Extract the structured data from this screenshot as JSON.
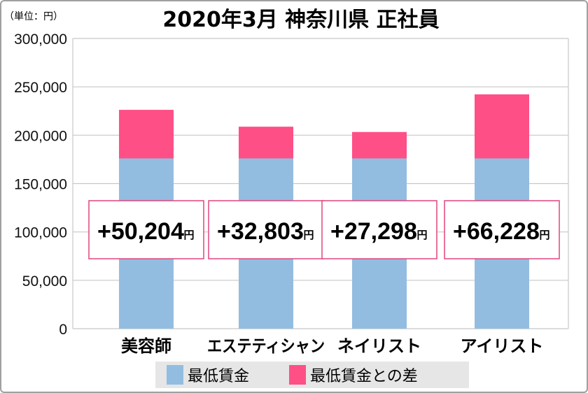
{
  "chart_data": {
    "type": "bar",
    "stacked": true,
    "title": "2020年3月 神奈川県 正社員",
    "unit_note": "（単位：円）",
    "categories": [
      "美容師",
      "エステティシャン",
      "ネイリスト",
      "アイリスト"
    ],
    "series": [
      {
        "name": "最低賃金",
        "color": "#93bde0",
        "values": [
          176000,
          176000,
          176000,
          176000
        ]
      },
      {
        "name": "最低賃金との差",
        "color": "#ff4f87",
        "values": [
          50204,
          32803,
          27298,
          66228
        ]
      }
    ],
    "data_labels": [
      "+50,204",
      "+32,803",
      "+27,298",
      "+66,228"
    ],
    "data_label_unit": "円",
    "ylim": [
      0,
      300000
    ],
    "yticks": [
      "0",
      "50,000",
      "100,000",
      "150,000",
      "200,000",
      "250,000",
      "300,000"
    ],
    "grid": true,
    "legend_position": "bottom",
    "label_box_color": "#e0457f"
  }
}
